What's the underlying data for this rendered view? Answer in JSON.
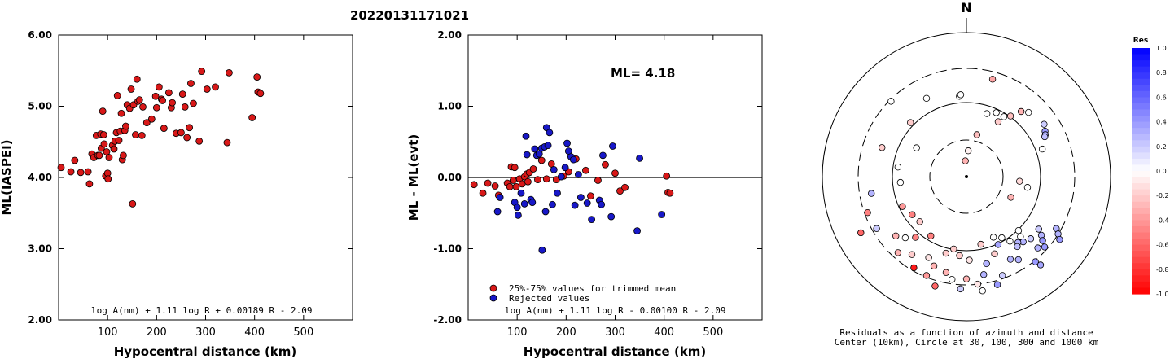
{
  "figure_title": "20220131171021",
  "chart_data": [
    {
      "type": "scatter",
      "xlabel": "Hypocentral distance (km)",
      "ylabel": "ML(IASPEI)",
      "xlim": [
        0,
        600
      ],
      "ylim": [
        2.0,
        6.0
      ],
      "xticks": [
        "100",
        "200",
        "300",
        "400",
        "500"
      ],
      "yticks": [
        "2.00",
        "3.00",
        "4.00",
        "5.00",
        "6.00"
      ],
      "formula": "log A(nm) + 1.11 log R + 0.00189 R - 2.09",
      "point_color": "#d81818",
      "points": [
        [
          5,
          4.14
        ],
        [
          25,
          4.08
        ],
        [
          33,
          4.24
        ],
        [
          45,
          4.07
        ],
        [
          60,
          4.08
        ],
        [
          63,
          3.91
        ],
        [
          68,
          4.33
        ],
        [
          72,
          4.28
        ],
        [
          77,
          4.59
        ],
        [
          80,
          4.31
        ],
        [
          83,
          4.31
        ],
        [
          86,
          4.61
        ],
        [
          87,
          4.41
        ],
        [
          90,
          4.93
        ],
        [
          92,
          4.6
        ],
        [
          93,
          4.47
        ],
        [
          96,
          4.02
        ],
        [
          98,
          4.36
        ],
        [
          100,
          4.06
        ],
        [
          101,
          3.98
        ],
        [
          103,
          4.28
        ],
        [
          110,
          4.45
        ],
        [
          113,
          4.4
        ],
        [
          115,
          4.51
        ],
        [
          118,
          4.63
        ],
        [
          120,
          5.15
        ],
        [
          123,
          4.52
        ],
        [
          126,
          4.65
        ],
        [
          128,
          4.9
        ],
        [
          130,
          4.25
        ],
        [
          132,
          4.31
        ],
        [
          135,
          4.66
        ],
        [
          137,
          4.72
        ],
        [
          140,
          5.02
        ],
        [
          145,
          4.97
        ],
        [
          148,
          5.24
        ],
        [
          151,
          3.63
        ],
        [
          153,
          5.02
        ],
        [
          157,
          4.6
        ],
        [
          160,
          5.38
        ],
        [
          162,
          5.07
        ],
        [
          165,
          5.09
        ],
        [
          170,
          4.59
        ],
        [
          172,
          4.99
        ],
        [
          180,
          4.77
        ],
        [
          190,
          4.82
        ],
        [
          198,
          5.14
        ],
        [
          200,
          4.98
        ],
        [
          205,
          5.27
        ],
        [
          210,
          5.1
        ],
        [
          212,
          5.08
        ],
        [
          215,
          4.69
        ],
        [
          225,
          5.19
        ],
        [
          230,
          4.98
        ],
        [
          232,
          5.05
        ],
        [
          240,
          4.62
        ],
        [
          250,
          4.63
        ],
        [
          253,
          5.17
        ],
        [
          258,
          4.99
        ],
        [
          262,
          4.56
        ],
        [
          267,
          4.7
        ],
        [
          270,
          5.32
        ],
        [
          275,
          5.04
        ],
        [
          287,
          4.51
        ],
        [
          292,
          5.49
        ],
        [
          303,
          5.24
        ],
        [
          320,
          5.27
        ],
        [
          344,
          4.49
        ],
        [
          348,
          5.47
        ],
        [
          395,
          4.84
        ],
        [
          405,
          5.41
        ],
        [
          407,
          5.2
        ],
        [
          412,
          5.18
        ]
      ]
    },
    {
      "type": "scatter",
      "xlabel": "Hypocentral distance (km)",
      "ylabel": "ML - ML(evt)",
      "xlim": [
        0,
        600
      ],
      "ylim": [
        -2.0,
        2.0
      ],
      "xticks": [
        "100",
        "200",
        "300",
        "400",
        "500"
      ],
      "yticks": [
        "-2.00",
        "-1.00",
        "0.00",
        "1.00",
        "2.00"
      ],
      "annotation": "ML= 4.18",
      "formula": "log A(nm) + 1.11 log R - 0.00100 R - 2.09",
      "series": [
        {
          "name": "25%-75% values for trimmed mean",
          "color": "#d81818",
          "points": [
            [
              12,
              -0.1
            ],
            [
              30,
              -0.22
            ],
            [
              40,
              -0.08
            ],
            [
              55,
              -0.12
            ],
            [
              62,
              -0.25
            ],
            [
              80,
              -0.08
            ],
            [
              85,
              -0.13
            ],
            [
              88,
              0.15
            ],
            [
              92,
              -0.04
            ],
            [
              95,
              0.14
            ],
            [
              98,
              -0.13
            ],
            [
              105,
              -0.02
            ],
            [
              110,
              -0.09
            ],
            [
              115,
              0.01
            ],
            [
              120,
              0.05
            ],
            [
              122,
              -0.06
            ],
            [
              125,
              0.07
            ],
            [
              133,
              0.12
            ],
            [
              142,
              -0.03
            ],
            [
              150,
              0.24
            ],
            [
              160,
              -0.02
            ],
            [
              170,
              0.19
            ],
            [
              180,
              -0.03
            ],
            [
              195,
              0.02
            ],
            [
              205,
              0.08
            ],
            [
              220,
              0.26
            ],
            [
              240,
              0.1
            ],
            [
              250,
              -0.26
            ],
            [
              265,
              -0.04
            ],
            [
              280,
              0.18
            ],
            [
              300,
              0.06
            ],
            [
              310,
              -0.19
            ],
            [
              320,
              -0.14
            ],
            [
              405,
              0.02
            ],
            [
              408,
              -0.21
            ],
            [
              412,
              -0.22
            ]
          ]
        },
        {
          "name": "Rejected values",
          "color": "#1818c8",
          "points": [
            [
              60,
              -0.48
            ],
            [
              65,
              -0.28
            ],
            [
              95,
              -0.35
            ],
            [
              100,
              -0.42
            ],
            [
              102,
              -0.53
            ],
            [
              108,
              -0.22
            ],
            [
              115,
              -0.37
            ],
            [
              118,
              0.58
            ],
            [
              120,
              0.32
            ],
            [
              128,
              -0.31
            ],
            [
              131,
              -0.35
            ],
            [
              136,
              0.4
            ],
            [
              140,
              0.31
            ],
            [
              145,
              0.33
            ],
            [
              150,
              0.41
            ],
            [
              151,
              -1.02
            ],
            [
              156,
              0.43
            ],
            [
              158,
              -0.48
            ],
            [
              160,
              0.7
            ],
            [
              163,
              0.45
            ],
            [
              166,
              0.63
            ],
            [
              172,
              -0.38
            ],
            [
              175,
              0.11
            ],
            [
              182,
              -0.22
            ],
            [
              190,
              0.01
            ],
            [
              198,
              0.14
            ],
            [
              202,
              0.48
            ],
            [
              205,
              0.37
            ],
            [
              210,
              0.29
            ],
            [
              215,
              0.25
            ],
            [
              218,
              -0.39
            ],
            [
              225,
              0.04
            ],
            [
              230,
              -0.28
            ],
            [
              243,
              -0.36
            ],
            [
              252,
              -0.59
            ],
            [
              268,
              -0.32
            ],
            [
              272,
              -0.38
            ],
            [
              275,
              0.31
            ],
            [
              292,
              -0.55
            ],
            [
              295,
              0.44
            ],
            [
              345,
              -0.75
            ],
            [
              350,
              0.27
            ],
            [
              395,
              -0.52
            ]
          ]
        }
      ]
    },
    {
      "type": "polar",
      "north_label": "N",
      "caption_line1": "Residuals as a function of azimuth and distance",
      "caption_line2": "Center (10km), Circle at 30, 100, 300 and 1000 km",
      "colorbar_title": "Res",
      "colorbar_ticks": [
        "1.0",
        "0.8",
        "0.6",
        "0.4",
        "0.2",
        "0.0",
        "-0.2",
        "-0.4",
        "-0.6",
        "-0.8",
        "-1.0"
      ],
      "points": [
        [
          4,
          0.18,
          -0.05
        ],
        [
          14,
          0.3,
          -0.25
        ],
        [
          18,
          0.46,
          0.0
        ],
        [
          25,
          0.49,
          0.0
        ],
        [
          30,
          0.44,
          -0.2
        ],
        [
          32,
          0.49,
          0.0
        ],
        [
          36,
          0.52,
          -0.25
        ],
        [
          40,
          0.59,
          -0.3
        ],
        [
          44,
          0.62,
          0.0
        ],
        [
          56,
          0.65,
          0.2
        ],
        [
          60,
          0.63,
          0.4
        ],
        [
          62,
          0.62,
          0.3
        ],
        [
          63,
          0.61,
          0.25
        ],
        [
          70,
          0.56,
          0.0
        ],
        [
          95,
          0.37,
          -0.15
        ],
        [
          100,
          0.43,
          0.0
        ],
        [
          115,
          0.34,
          -0.3
        ],
        [
          120,
          0.72,
          0.3
        ],
        [
          122,
          0.75,
          0.3
        ],
        [
          124,
          0.78,
          0.4
        ],
        [
          126,
          0.62,
          0.2
        ],
        [
          128,
          0.66,
          0.3
        ],
        [
          130,
          0.69,
          0.4
        ],
        [
          132,
          0.73,
          0.4
        ],
        [
          134,
          0.62,
          0.2
        ],
        [
          135,
          0.7,
          0.3
        ],
        [
          136,
          0.52,
          0.0
        ],
        [
          138,
          0.56,
          0.0
        ],
        [
          139,
          0.6,
          0.3
        ],
        [
          140,
          0.8,
          0.35
        ],
        [
          141,
          0.76,
          0.4
        ],
        [
          142,
          0.58,
          0.3
        ],
        [
          144,
          0.6,
          0.25
        ],
        [
          146,
          0.54,
          0.0
        ],
        [
          148,
          0.68,
          0.3
        ],
        [
          150,
          0.49,
          0.0
        ],
        [
          152,
          0.65,
          0.3
        ],
        [
          155,
          0.52,
          0.35
        ],
        [
          156,
          0.46,
          0.0
        ],
        [
          160,
          0.57,
          -0.2
        ],
        [
          160,
          0.73,
          0.2
        ],
        [
          164,
          0.78,
          0.4
        ],
        [
          167,
          0.62,
          0.3
        ],
        [
          168,
          0.48,
          -0.2
        ],
        [
          170,
          0.69,
          0.3
        ],
        [
          172,
          0.8,
          0.0
        ],
        [
          174,
          0.75,
          -0.1
        ],
        [
          178,
          0.58,
          -0.1
        ],
        [
          180,
          0.71,
          -0.3
        ],
        [
          183,
          0.78,
          0.2
        ],
        [
          185,
          0.55,
          -0.2
        ],
        [
          188,
          0.72,
          0.0
        ],
        [
          190,
          0.51,
          -0.2
        ],
        [
          192,
          0.68,
          -0.3
        ],
        [
          195,
          0.55,
          -0.2
        ],
        [
          196,
          0.79,
          -0.6
        ],
        [
          200,
          0.66,
          -0.3
        ],
        [
          202,
          0.74,
          -0.4
        ],
        [
          205,
          0.62,
          -0.1
        ],
        [
          210,
          0.73,
          -0.9
        ],
        [
          211,
          0.48,
          -0.5
        ],
        [
          215,
          0.66,
          -0.2
        ],
        [
          220,
          0.55,
          -0.5
        ],
        [
          222,
          0.71,
          -0.3
        ],
        [
          225,
          0.6,
          0.0
        ],
        [
          226,
          0.45,
          -0.2
        ],
        [
          230,
          0.64,
          -0.3
        ],
        [
          235,
          0.46,
          -0.5
        ],
        [
          240,
          0.72,
          0.2
        ],
        [
          242,
          0.83,
          -0.6
        ],
        [
          245,
          0.49,
          -0.4
        ],
        [
          250,
          0.73,
          -0.5
        ],
        [
          260,
          0.67,
          0.3
        ],
        [
          265,
          0.46,
          0.0
        ],
        [
          278,
          0.48,
          0.0
        ],
        [
          289,
          0.62,
          -0.2
        ],
        [
          300,
          0.4,
          0.0
        ],
        [
          314,
          0.54,
          -0.2
        ],
        [
          315,
          0.74,
          0.0
        ],
        [
          333,
          0.61,
          0.0
        ],
        [
          355,
          0.56,
          0.0
        ],
        [
          356,
          0.57,
          0.0
        ],
        [
          356,
          0.11,
          -0.3
        ],
        [
          15,
          0.7,
          -0.35
        ]
      ]
    }
  ]
}
